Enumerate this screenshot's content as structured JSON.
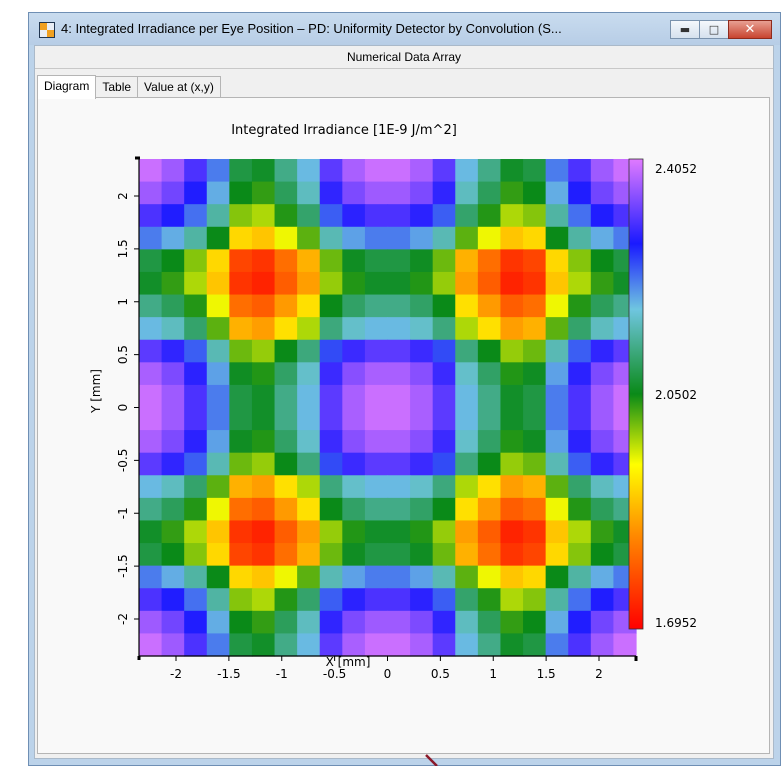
{
  "window": {
    "title": "4: Integrated Irradiance per Eye Position – PD: Uniformity Detector by Convolution (S...",
    "subheader": "Numerical Data Array",
    "controls": [
      "minimize",
      "maximize",
      "close"
    ]
  },
  "tabs": [
    {
      "label": "Diagram",
      "active": true
    },
    {
      "label": "Table",
      "active": false
    },
    {
      "label": "Value at (x,y)",
      "active": false
    }
  ],
  "chart_data": {
    "type": "heatmap",
    "title": "Integrated Irradiance  [1E-9 J/m^2]",
    "xlabel": "X [mm]",
    "ylabel": "Y [mm]",
    "xlim": [
      -2.35,
      2.35
    ],
    "ylim": [
      -2.35,
      2.35
    ],
    "x_ticks": [
      "-2",
      "-1.5",
      "-1",
      "-0.5",
      "0",
      "0.5",
      "1",
      "1.5",
      "2"
    ],
    "y_ticks": [
      "-2",
      "-1.5",
      "-1",
      "-0.5",
      "0",
      "0.5",
      "1",
      "1.5",
      "2"
    ],
    "x_tick_values": [
      -2,
      -1.5,
      -1,
      -0.5,
      0,
      0.5,
      1,
      1.5,
      2
    ],
    "y_tick_values": [
      -2,
      -1.5,
      -1,
      -0.5,
      0,
      0.5,
      1,
      1.5,
      2
    ],
    "colorbar": {
      "min_label": "1.6952",
      "mid_label": "2.0502",
      "max_label": "2.4052",
      "min": 1.6952,
      "mid": 2.0502,
      "max": 2.4052
    },
    "grid_size": 22,
    "row_profile": [
      0.98,
      0.9,
      0.75,
      0.5,
      0.1,
      0.05,
      0.22,
      0.4,
      0.78,
      0.92,
      0.98,
      0.98,
      0.92,
      0.78,
      0.4,
      0.22,
      0.05,
      0.1,
      0.5,
      0.75,
      0.9,
      0.98
    ],
    "col_profile": [
      0.98,
      0.9,
      0.75,
      0.5,
      0.1,
      0.05,
      0.22,
      0.4,
      0.78,
      0.92,
      0.98,
      0.98,
      0.92,
      0.78,
      0.4,
      0.22,
      0.05,
      0.1,
      0.5,
      0.75,
      0.9,
      0.98
    ]
  }
}
